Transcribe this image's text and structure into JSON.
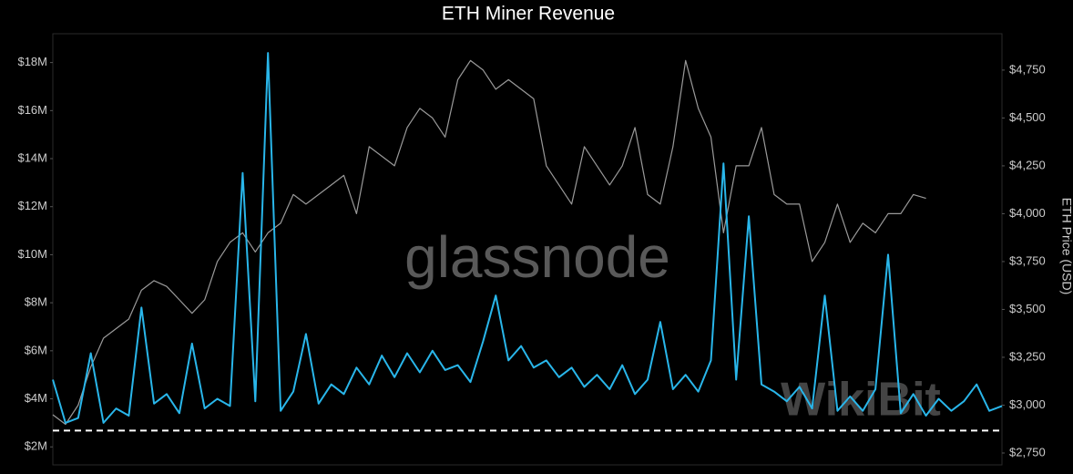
{
  "chart_data": {
    "type": "line",
    "title": "ETH Miner Revenue",
    "y2_label": "ETH Price (USD)",
    "watermarks": [
      "glassnode",
      "WikiBit"
    ],
    "ylim": [
      1250000,
      19200000
    ],
    "yticks": [
      {
        "value": 2000000,
        "label": "$2M"
      },
      {
        "value": 4000000,
        "label": "$4M"
      },
      {
        "value": 6000000,
        "label": "$6M"
      },
      {
        "value": 8000000,
        "label": "$8M"
      },
      {
        "value": 10000000,
        "label": "$10M"
      },
      {
        "value": 12000000,
        "label": "$12M"
      },
      {
        "value": 14000000,
        "label": "$14M"
      },
      {
        "value": 16000000,
        "label": "$16M"
      },
      {
        "value": 18000000,
        "label": "$18M"
      }
    ],
    "y2lim": [
      2688,
      4940
    ],
    "y2ticks": [
      {
        "value": 2750,
        "label": "$2,750"
      },
      {
        "value": 3000,
        "label": "$3,000"
      },
      {
        "value": 3250,
        "label": "$3,250"
      },
      {
        "value": 3500,
        "label": "$3,500"
      },
      {
        "value": 3750,
        "label": "$3,750"
      },
      {
        "value": 4000,
        "label": "$4,000"
      },
      {
        "value": 4250,
        "label": "$4,250"
      },
      {
        "value": 4500,
        "label": "$4,500"
      },
      {
        "value": 4750,
        "label": "$4,750"
      }
    ],
    "reference_line": 2680000,
    "series": [
      {
        "color": "#29b6ea",
        "values": [
          4800000,
          3000000,
          3200000,
          5900000,
          3000000,
          3600000,
          3300000,
          7800000,
          3800000,
          4200000,
          3400000,
          6300000,
          3600000,
          4000000,
          3700000,
          13400000,
          3900000,
          18400000,
          3500000,
          4300000,
          6700000,
          3800000,
          4600000,
          4200000,
          5300000,
          4600000,
          5800000,
          4900000,
          5900000,
          5100000,
          6000000,
          5200000,
          5400000,
          4700000,
          6400000,
          8300000,
          5600000,
          6200000,
          5300000,
          5600000,
          4900000,
          5300000,
          4500000,
          5000000,
          4400000,
          5400000,
          4200000,
          4800000,
          7200000,
          4400000,
          5000000,
          4300000,
          5600000,
          13800000,
          4800000,
          11600000,
          4600000,
          4300000,
          3900000,
          4500000,
          3600000,
          8300000,
          3500000,
          4100000,
          3500000,
          4400000,
          10000000,
          3400000,
          4200000,
          3300000,
          4000000,
          3500000,
          3900000,
          4600000,
          3500000,
          3700000
        ]
      },
      {
        "color": "#9a9a9a",
        "axis": "y2",
        "values": [
          2950,
          2900,
          3000,
          3200,
          3350,
          3400,
          3450,
          3600,
          3650,
          3620,
          3550,
          3480,
          3550,
          3750,
          3850,
          3900,
          3800,
          3900,
          3950,
          4100,
          4050,
          4100,
          4150,
          4200,
          4000,
          4350,
          4300,
          4250,
          4450,
          4550,
          4500,
          4400,
          4700,
          4800,
          4750,
          4650,
          4700,
          4650,
          4600,
          4250,
          4150,
          4050,
          4350,
          4250,
          4150,
          4250,
          4450,
          4100,
          4050,
          4350,
          4800,
          4550,
          4400,
          3900,
          4250,
          4250,
          4450,
          4100,
          4050,
          4050,
          3750,
          3850,
          4050,
          3850,
          3950,
          3900,
          4000,
          4000,
          4100,
          4080,
          null,
          null,
          null,
          null,
          null,
          null
        ]
      }
    ]
  }
}
